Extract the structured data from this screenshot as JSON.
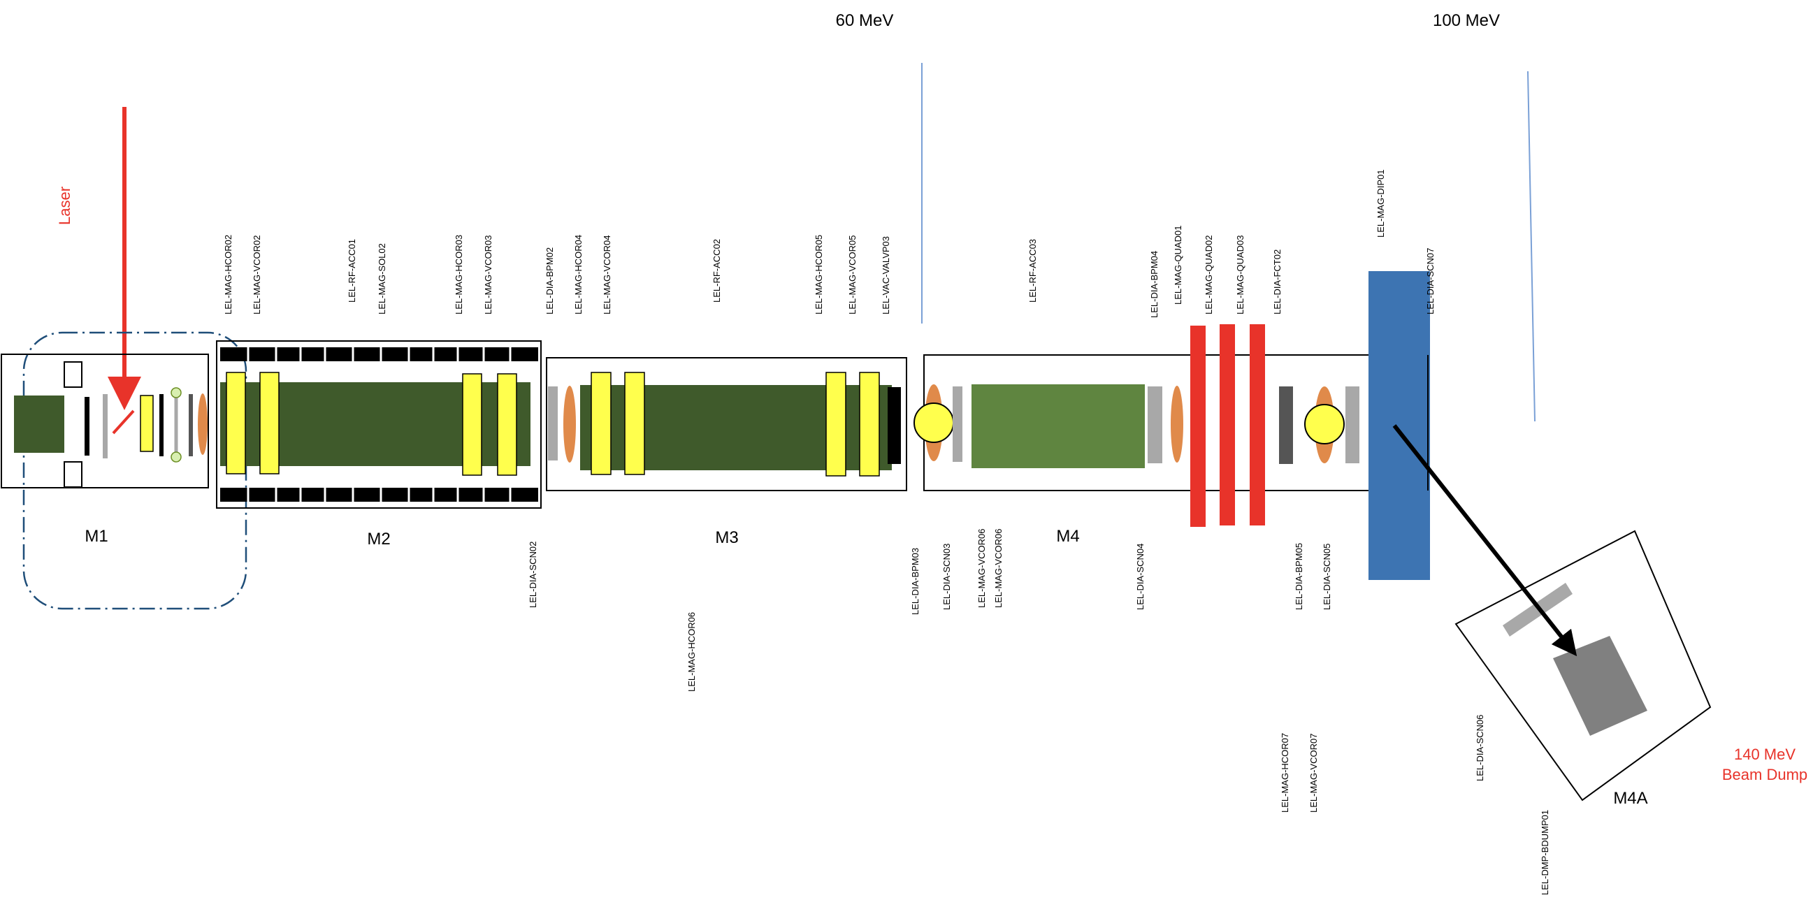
{
  "energy_labels": {
    "e60": "60 MeV",
    "e100": "100 MeV",
    "e140_line1": "140 MeV",
    "e140_line2": "Beam Dump",
    "laser": "Laser"
  },
  "modules": {
    "m1": "M1",
    "m2": "M2",
    "m3": "M3",
    "m4": "M4",
    "m4a": "M4A"
  },
  "devices_top": [
    "LEL-MAG-HCOR02",
    "LEL-MAG-VCOR02",
    "LEL-RF-ACC01",
    "LEL-MAG-SOL02",
    "LEL-MAG-HCOR03",
    "LEL-MAG-VCOR03",
    "LEL-DIA-BPM02",
    "LEL-MAG-HCOR04",
    "LEL-MAG-VCOR04",
    "LEL-RF-ACC02",
    "LEL-MAG-HCOR05",
    "LEL-MAG-VCOR05",
    "LEL-VAC-VALVP03",
    "LEL-RF-ACC03",
    "LEL-DIA-BPM04",
    "LEL-MAG-QUAD01",
    "LEL-MAG-QUAD02",
    "LEL-MAG-QUAD03",
    "LEL-DIA-FCT02",
    "LEL-MAG-DIP01",
    "LEL-DIA-SCN07"
  ],
  "devices_bottom": [
    "LEL-DIA-SCN02",
    "LEL-MAG-HCOR06",
    "LEL-DIA-BPM03",
    "LEL-DIA-SCN03",
    "LEL-MAG-VCOR06",
    "LEL-MAG-VCOR06",
    "LEL-DIA-SCN04",
    "LEL-DIA-BPM05",
    "LEL-DIA-SCN05",
    "LEL-MAG-HCOR07",
    "LEL-MAG-VCOR07",
    "LEL-DIA-SCN06",
    "LEL-DMP-BDUMP01"
  ],
  "colors": {
    "accelerator": "#3f5a2b",
    "accelerator_light": "#5f8540",
    "corrector": "#ffff4d",
    "quad": "#e8332a",
    "dipole": "#3d74b2",
    "bpm": "#e08a4a",
    "screen": "#a8a8a8",
    "dump": "#808080",
    "laser": "#e8332a",
    "boundary": "#1f4e79",
    "energy_line": "#7aa0d6"
  }
}
